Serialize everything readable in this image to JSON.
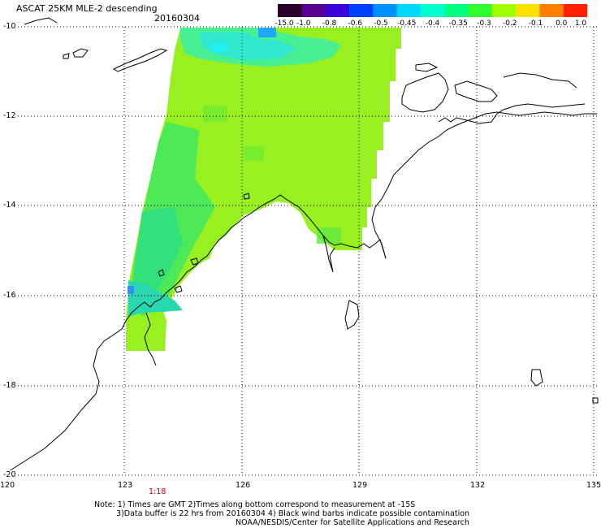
{
  "header": {
    "title": "ASCAT 25KM MLE-2 descending",
    "date": "20160304"
  },
  "colorbar": {
    "labels": [
      "-15.0",
      "-1.0",
      "-0.8",
      "-0.6",
      "-0.5",
      "-0.45",
      "-0.4",
      "-0.35",
      "-0.3",
      "-0.2",
      "-0.1",
      "0.0",
      "1.0"
    ],
    "colors": [
      "#2a0028",
      "#5a0090",
      "#3a00d8",
      "#0040ff",
      "#0090ff",
      "#00d8ff",
      "#00ffd0",
      "#00ff80",
      "#30ff30",
      "#a0ff00",
      "#ffe000",
      "#ff8000",
      "#ff2000"
    ]
  },
  "axes": {
    "lon_labels": [
      "120",
      "123",
      "126",
      "129",
      "132",
      "135"
    ],
    "lat_labels": [
      "-10",
      "-12",
      "-14",
      "-16",
      "-18",
      "-20"
    ]
  },
  "pass_time": "1:18",
  "notes": {
    "line1": "Note: 1) Times are GMT 2)Times along bottom correspond to measurement at -15S",
    "line2": "3)Data buffer is 22 hrs from 20160304 4) Black wind barbs indicate possible contamination",
    "line3": "NOAA/NESDIS/Center for Satellite Applications and Research"
  }
}
